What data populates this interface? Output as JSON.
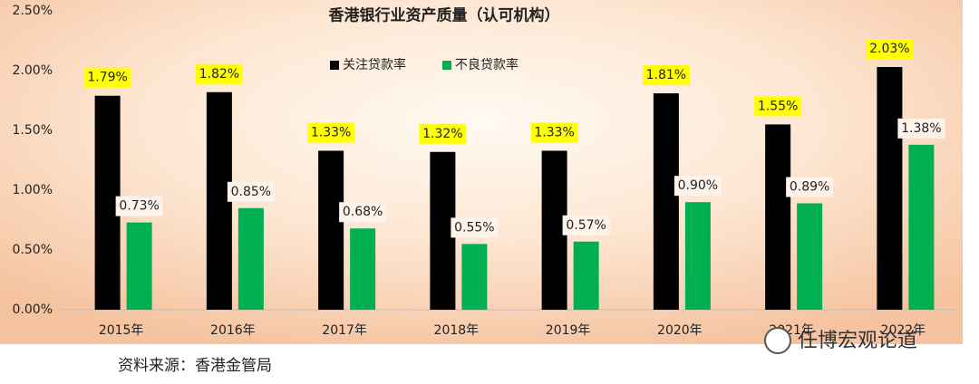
{
  "chart_data": {
    "type": "bar",
    "title": "香港银行业资产质量（认可机构）",
    "categories": [
      "2015年",
      "2016年",
      "2017年",
      "2018年",
      "2019年",
      "2020年",
      "2021年",
      "2022年"
    ],
    "series": [
      {
        "name": "关注贷款率",
        "color": "#000000",
        "values": [
          1.79,
          1.82,
          1.33,
          1.32,
          1.33,
          1.81,
          1.55,
          2.03
        ],
        "value_labels": [
          "1.79%",
          "1.82%",
          "1.33%",
          "1.32%",
          "1.33%",
          "1.81%",
          "1.55%",
          "2.03%"
        ]
      },
      {
        "name": "不良贷款率",
        "color": "#00b050",
        "values": [
          0.73,
          0.85,
          0.68,
          0.55,
          0.57,
          0.9,
          0.89,
          1.38
        ],
        "value_labels": [
          "0.73%",
          "0.85%",
          "0.68%",
          "0.55%",
          "0.57%",
          "0.90%",
          "0.89%",
          "1.38%"
        ]
      }
    ],
    "ylim": [
      0,
      2.5
    ],
    "yticks": [
      {
        "value": 0,
        "label": "0.00%"
      },
      {
        "value": 0.5,
        "label": "0.50%"
      },
      {
        "value": 1,
        "label": "1.00%"
      },
      {
        "value": 1.5,
        "label": "1.50%"
      },
      {
        "value": 2,
        "label": "2.00%"
      },
      {
        "value": 2.5,
        "label": "2.50%"
      }
    ],
    "grid": false
  },
  "source": "资料来源：香港金管局",
  "watermark": "任博宏观论道"
}
